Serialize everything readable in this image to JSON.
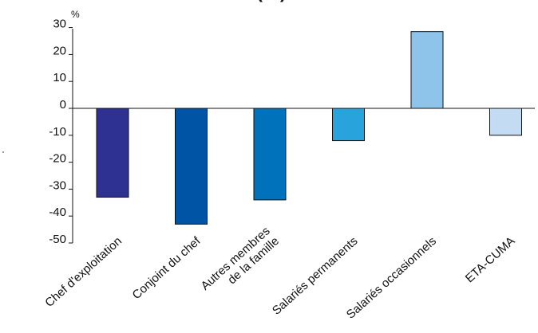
{
  "chart_data": {
    "type": "bar",
    "title_fragment": "(…)",
    "ylabel": "%",
    "ylim": [
      -50,
      30
    ],
    "yticks": [
      "30",
      "20",
      "10",
      "0",
      "-10",
      "-20",
      "-30",
      "-40",
      "-50"
    ],
    "grid": false,
    "categories": [
      [
        "Chef d'exploitation"
      ],
      [
        "Conjoint du chef"
      ],
      [
        "Autres membres",
        "de la famille"
      ],
      [
        "Salariés permanents"
      ],
      [
        "Salariés occasionnels"
      ],
      [
        "ETA-CUMA"
      ]
    ],
    "values": [
      -33,
      -43,
      -34,
      -12,
      28.5,
      -10
    ],
    "colors": [
      "#2e3192",
      "#0054a6",
      "#0072bc",
      "#29a3dc",
      "#8ec3ea",
      "#c4dcf3"
    ]
  }
}
